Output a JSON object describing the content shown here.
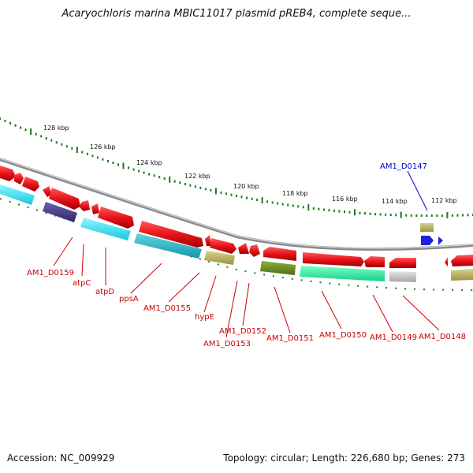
{
  "title": "Acaryochloris marina MBIC11017 plasmid pREB4, complete seque...",
  "footer": {
    "accession": "Accession: NC_009929",
    "topology": "Topology: circular; Length: 226,680 bp; Genes: 273"
  },
  "ruler": {
    "labels": [
      "128 kbp",
      "126 kbp",
      "124 kbp",
      "122 kbp",
      "120 kbp",
      "118 kbp",
      "116 kbp",
      "114 kbp",
      "112 kbp"
    ]
  },
  "gene_labels": [
    {
      "text": "AM1_D0147",
      "color": "#0000cc"
    },
    {
      "text": "AM1_D0159",
      "color": "#cc0000"
    },
    {
      "text": "atpC",
      "color": "#cc0000"
    },
    {
      "text": "atpD",
      "color": "#cc0000"
    },
    {
      "text": "ppsA",
      "color": "#cc0000"
    },
    {
      "text": "AM1_D0155",
      "color": "#cc0000"
    },
    {
      "text": "hypE",
      "color": "#cc0000"
    },
    {
      "text": "AM1_D0152",
      "color": "#cc0000"
    },
    {
      "text": "AM1_D0153",
      "color": "#cc0000"
    },
    {
      "text": "AM1_D0151",
      "color": "#cc0000"
    },
    {
      "text": "AM1_D0150",
      "color": "#cc0000"
    },
    {
      "text": "AM1_D0149",
      "color": "#cc0000"
    },
    {
      "text": "AM1_D0148",
      "color": "#cc0000"
    }
  ],
  "colors": {
    "cds": "#e8141a",
    "cds_dark": "#b00000",
    "backbone": "#8a8a8a",
    "ruler": "#1a7a1a",
    "blue_gene": "#1f22e0",
    "cyan": "#22ddee",
    "teal": "#22b6c6",
    "navy": "#4a3f8a",
    "khaki": "#b8b060",
    "olive": "#6b8c22",
    "mint": "#22e69a",
    "grey": "#c0c0c0"
  }
}
